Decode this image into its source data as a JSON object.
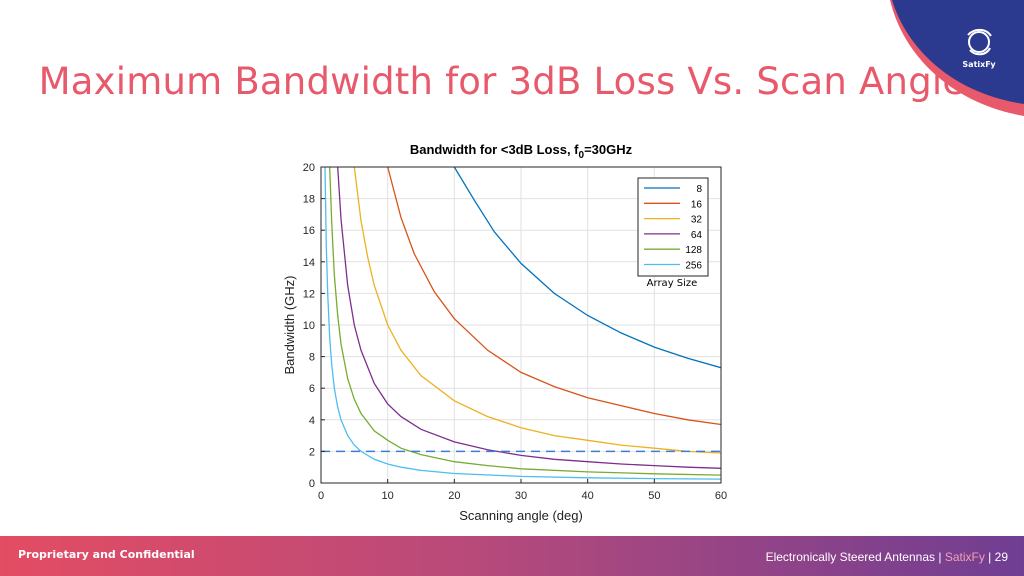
{
  "slide": {
    "title": "Maximum Bandwidth for 3dB Loss Vs. Scan Angle",
    "logo_text": "SatixFy",
    "footer_left": "Proprietary and Confidential",
    "footer_topic": "Electronically Steered Antennas",
    "footer_sep": "|",
    "footer_brand": "SatixFy",
    "footer_page": "29"
  },
  "colors": {
    "title": "#e8596b",
    "corner_blue": "#2b3a8f",
    "corner_pink": "#e8596b",
    "reference_line": "#3a7fd5"
  },
  "chart_data": {
    "type": "line",
    "title": "Bandwidth for <3dB Loss, f",
    "title_subscript": "0",
    "title_suffix": "=30GHz",
    "xlabel": "Scanning angle (deg)",
    "ylabel": "Bandwidth (GHz)",
    "xlim": [
      0,
      60
    ],
    "ylim": [
      0,
      20
    ],
    "xticks": [
      0,
      10,
      20,
      30,
      40,
      50,
      60
    ],
    "yticks": [
      0,
      2,
      4,
      6,
      8,
      10,
      12,
      14,
      16,
      18,
      20
    ],
    "grid": true,
    "legend_position": "top-right",
    "legend_caption": "Array Size",
    "reference_line": {
      "y": 2,
      "style": "dashed"
    },
    "series": [
      {
        "name": "8",
        "color": "#0072bd",
        "x": [
          20,
          23,
          26,
          30,
          35,
          40,
          45,
          50,
          55,
          60
        ],
        "y": [
          20,
          17.9,
          15.9,
          13.9,
          12.0,
          10.6,
          9.5,
          8.6,
          7.9,
          7.3
        ]
      },
      {
        "name": "16",
        "color": "#d95319",
        "x": [
          10,
          12,
          14,
          17,
          20,
          25,
          30,
          35,
          40,
          45,
          50,
          55,
          60
        ],
        "y": [
          20,
          16.8,
          14.5,
          12.1,
          10.4,
          8.4,
          7.0,
          6.1,
          5.4,
          4.9,
          4.4,
          4.0,
          3.7
        ]
      },
      {
        "name": "32",
        "color": "#edb120",
        "x": [
          5,
          6,
          7,
          8,
          10,
          12,
          15,
          20,
          25,
          30,
          35,
          40,
          45,
          50,
          55,
          60
        ],
        "y": [
          20,
          16.6,
          14.3,
          12.5,
          10.0,
          8.4,
          6.8,
          5.2,
          4.2,
          3.5,
          3.0,
          2.7,
          2.4,
          2.2,
          2.0,
          1.9
        ]
      },
      {
        "name": "64",
        "color": "#7e2f8e",
        "x": [
          2.5,
          3,
          4,
          5,
          6,
          8,
          10,
          12,
          15,
          20,
          25,
          30,
          35,
          40,
          45,
          50,
          55,
          60
        ],
        "y": [
          20,
          16.7,
          12.5,
          10.0,
          8.4,
          6.3,
          5.0,
          4.2,
          3.4,
          2.6,
          2.1,
          1.75,
          1.5,
          1.35,
          1.2,
          1.1,
          1.0,
          0.93
        ]
      },
      {
        "name": "128",
        "color": "#77ac30",
        "x": [
          1.3,
          1.6,
          2,
          2.5,
          3,
          4,
          5,
          6,
          8,
          10,
          12,
          15,
          20,
          25,
          30,
          40,
          50,
          60
        ],
        "y": [
          20,
          16.5,
          13.2,
          10.6,
          8.8,
          6.6,
          5.3,
          4.4,
          3.3,
          2.7,
          2.2,
          1.8,
          1.35,
          1.1,
          0.9,
          0.7,
          0.58,
          0.5
        ]
      },
      {
        "name": "256",
        "color": "#4dbeee",
        "x": [
          0.6,
          0.8,
          1,
          1.3,
          1.6,
          2,
          2.5,
          3,
          4,
          5,
          6,
          8,
          10,
          12,
          15,
          20,
          30,
          40,
          50,
          60
        ],
        "y": [
          20,
          15.0,
          12.0,
          9.2,
          7.5,
          6.0,
          4.8,
          4.0,
          3.0,
          2.4,
          2.0,
          1.5,
          1.2,
          1.0,
          0.8,
          0.6,
          0.42,
          0.33,
          0.28,
          0.25
        ]
      }
    ]
  }
}
